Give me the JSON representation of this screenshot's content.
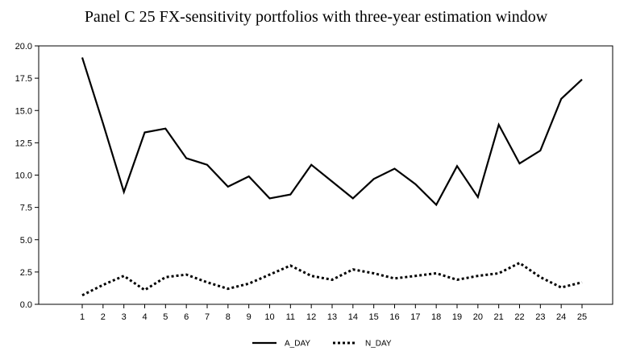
{
  "chart_data": {
    "type": "line",
    "title": "Panel C 25 FX-sensitivity portfolios with three-year estimation window",
    "xlabel": "",
    "ylabel": "",
    "categories": [
      "1",
      "2",
      "3",
      "4",
      "5",
      "6",
      "7",
      "8",
      "9",
      "10",
      "11",
      "12",
      "13",
      "14",
      "15",
      "16",
      "17",
      "18",
      "19",
      "20",
      "21",
      "22",
      "23",
      "24",
      "25"
    ],
    "ylim": [
      0,
      20
    ],
    "yticks": [
      "0.0",
      "2.5",
      "5.0",
      "7.5",
      "10.0",
      "12.5",
      "15.0",
      "17.5",
      "20.0"
    ],
    "grid": false,
    "legend_position": "bottom-center",
    "series": [
      {
        "name": "A_DAY",
        "style": "solid",
        "color": "#000000",
        "values": [
          19.1,
          14.0,
          8.7,
          13.3,
          13.6,
          11.3,
          10.8,
          9.1,
          9.9,
          8.2,
          8.5,
          10.8,
          9.5,
          8.2,
          9.7,
          10.5,
          9.3,
          7.7,
          10.7,
          8.3,
          13.9,
          10.9,
          11.9,
          15.9,
          17.4
        ]
      },
      {
        "name": "N_DAY",
        "style": "dotted",
        "color": "#000000",
        "values": [
          0.7,
          1.5,
          2.2,
          1.1,
          2.1,
          2.3,
          1.7,
          1.2,
          1.6,
          2.3,
          3.0,
          2.2,
          1.9,
          2.7,
          2.4,
          2.0,
          2.2,
          2.4,
          1.9,
          2.2,
          2.4,
          3.2,
          2.1,
          1.3,
          1.7
        ]
      }
    ]
  }
}
